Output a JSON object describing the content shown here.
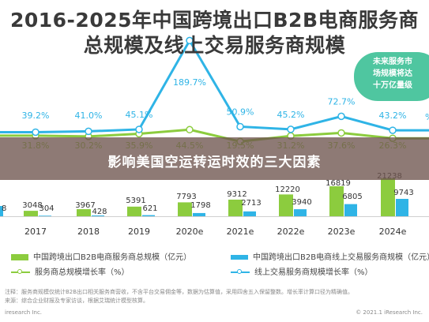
{
  "title": {
    "line1": "2016-2025年中国跨境出口B2B电商服务商",
    "line2": "总规模及线上交易服务商规模"
  },
  "banner": "影响美国空运转运时效的三大因素",
  "callout": [
    "未来服务市",
    "场规模将达",
    "十万亿量级"
  ],
  "chart_data": {
    "type": "bar",
    "categories": [
      "2017",
      "2018",
      "2019",
      "2020e",
      "2021e",
      "2022e",
      "2023e",
      "2024e"
    ],
    "series": [
      {
        "name": "中国跨境出口B2B电商服务商总规模（亿元）",
        "type": "bar",
        "color": "#8ccc3e",
        "values": [
          3048,
          3967,
          5391,
          7793,
          9312,
          12220,
          16819,
          21238
        ]
      },
      {
        "name": "中国跨境出口B2B电商线上交易服务商规模（亿元）",
        "type": "bar",
        "color": "#2fb4e6",
        "values": [
          304,
          428,
          621,
          1798,
          2713,
          3940,
          6805,
          9743
        ]
      },
      {
        "name": "服务商总规模增长率（%）",
        "type": "line",
        "color": "#8ccc3e",
        "values": [
          31.8,
          30.2,
          35.9,
          44.5,
          19.5,
          31.2,
          37.6,
          26.3
        ]
      },
      {
        "name": "线上交易服务商规模增长率（%）",
        "type": "line",
        "color": "#2fb4e6",
        "values": [
          39.2,
          41.0,
          45.1,
          189.7,
          50.9,
          45.2,
          72.7,
          43.2
        ]
      }
    ],
    "value_labels": {
      "total": [
        "3048",
        "3967",
        "5391",
        "7793",
        "9312",
        "12220",
        "16819",
        "21238"
      ],
      "online": [
        "304",
        "428",
        "621",
        "1798",
        "2713",
        "3940",
        "6805",
        "9743"
      ],
      "total_rate": [
        "31.8%",
        "30.2%",
        "35.9%",
        "44.5%",
        "19.5%",
        "31.2%",
        "37.6%",
        "26.3%"
      ],
      "online_rate": [
        "39.2%",
        "41.0%",
        "45.1%",
        "189.7%",
        "50.9%",
        "45.2%",
        "72.7%",
        "43.2%"
      ]
    },
    "left_partial_labels": {
      "bar": "8",
      "rate": "%"
    },
    "legend_position": "bottom",
    "grid": false
  },
  "footer": {
    "note1": "注释：服务商规模仅统计B2B出口相关服务商营收，不含平台交易佣金等，数据为估算值，采用四舍五入保留整数。增长率计算口径为精确值。",
    "note2": "来源：综合企业财报及专家访谈，根据艾瑞统计模型核算。",
    "source": "iresearch Inc.",
    "copyright": "© 2021.1 iResearch Inc."
  }
}
